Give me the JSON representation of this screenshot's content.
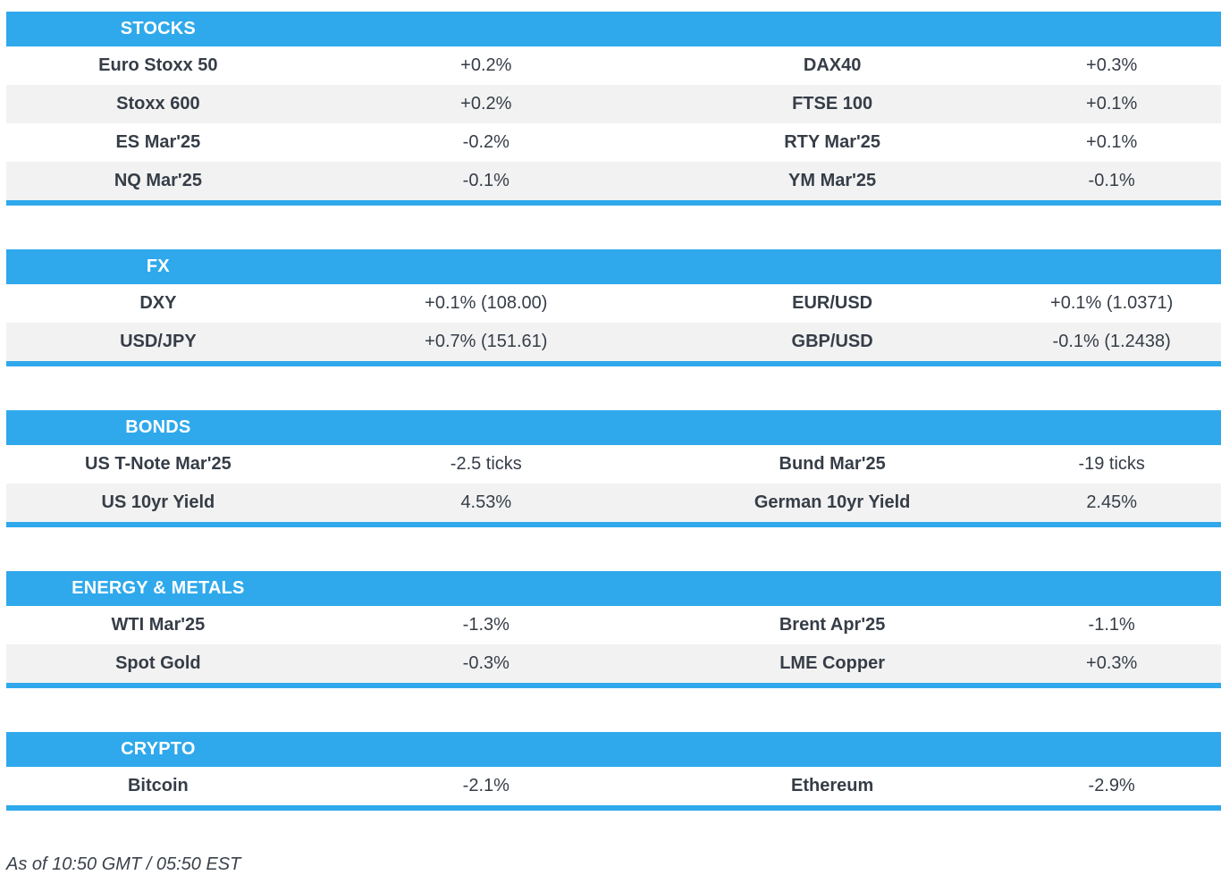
{
  "accent_color": "#2fa9ec",
  "row_alt_color": "#f2f2f2",
  "text_color": "#363d47",
  "sections": [
    {
      "title": "STOCKS",
      "rows": [
        {
          "cells": [
            "Euro Stoxx 50",
            "+0.2%",
            "DAX40",
            "+0.3%"
          ]
        },
        {
          "cells": [
            "Stoxx 600",
            "+0.2%",
            "FTSE 100",
            "+0.1%"
          ]
        },
        {
          "cells": [
            "ES Mar'25",
            "-0.2%",
            "RTY Mar'25",
            "+0.1%"
          ]
        },
        {
          "cells": [
            "NQ Mar'25",
            "-0.1%",
            "YM Mar'25",
            "-0.1%"
          ]
        }
      ]
    },
    {
      "title": "FX",
      "rows": [
        {
          "cells": [
            "DXY",
            "+0.1% (108.00)",
            "EUR/USD",
            "+0.1% (1.0371)"
          ]
        },
        {
          "cells": [
            "USD/JPY",
            "+0.7% (151.61)",
            "GBP/USD",
            "-0.1% (1.2438)"
          ]
        }
      ]
    },
    {
      "title": "BONDS",
      "rows": [
        {
          "cells": [
            "US T-Note Mar'25",
            "-2.5 ticks",
            "Bund Mar'25",
            "-19 ticks"
          ]
        },
        {
          "cells": [
            "US 10yr Yield",
            "4.53%",
            "German 10yr Yield",
            "2.45%"
          ]
        }
      ]
    },
    {
      "title": "ENERGY & METALS",
      "rows": [
        {
          "cells": [
            "WTI Mar'25",
            "-1.3%",
            "Brent Apr'25",
            "-1.1%"
          ]
        },
        {
          "cells": [
            "Spot Gold",
            "-0.3%",
            "LME Copper",
            "+0.3%"
          ]
        }
      ]
    },
    {
      "title": "CRYPTO",
      "rows": [
        {
          "cells": [
            "Bitcoin",
            "-2.1%",
            "Ethereum",
            "-2.9%"
          ]
        }
      ]
    }
  ],
  "footer": {
    "timestamp": "As of 10:50 GMT / 05:50 EST"
  }
}
